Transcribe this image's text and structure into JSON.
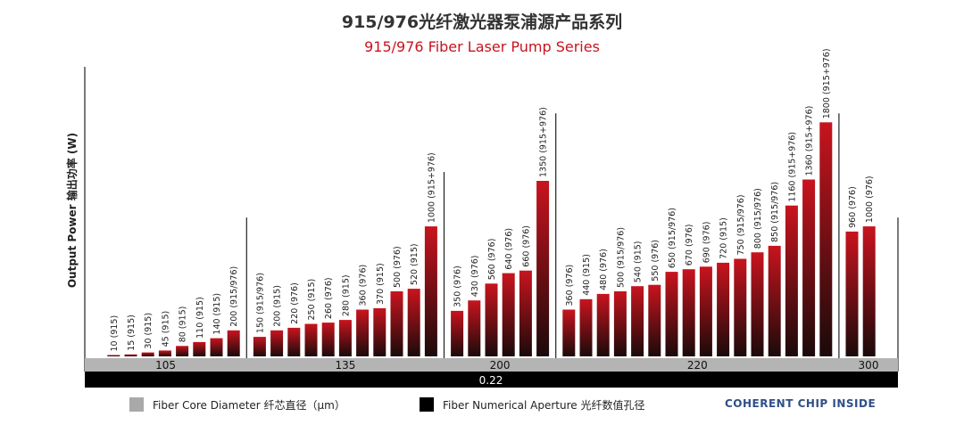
{
  "title_cn": "915/976光纤激光器泵浦源产品系列",
  "title_en": "915/976 Fiber Laser Pump Series",
  "legend": {
    "core": {
      "label": "Fiber Core Diameter 纤芯直径（μm）",
      "color": "#a9a9a9"
    },
    "na": {
      "label": "Fiber Numerical Aperture 光纤数值孔径",
      "color": "#000000"
    }
  },
  "brand": "COHERENT CHIP INSIDE",
  "colors": {
    "bar_top": "#c8141e",
    "bar_bottom": "#1a0a0a",
    "title_red": "#c8141e"
  },
  "chart_data": {
    "type": "bar",
    "ylabel": "Output Power 输出功率 (W)",
    "ylim": [
      0,
      1850
    ],
    "groups": [
      {
        "core_diameter": "105",
        "bars": [
          {
            "value": 10,
            "label": "10 (915)"
          },
          {
            "value": 15,
            "label": "15 (915)"
          },
          {
            "value": 30,
            "label": "30 (915)"
          },
          {
            "value": 45,
            "label": "45 (915)"
          },
          {
            "value": 80,
            "label": "80 (915)"
          },
          {
            "value": 110,
            "label": "110 (915)"
          },
          {
            "value": 140,
            "label": "140 (915)"
          },
          {
            "value": 200,
            "label": "200 (915/976)"
          }
        ]
      },
      {
        "core_diameter": "135",
        "bars": [
          {
            "value": 150,
            "label": "150 (915/976)"
          },
          {
            "value": 200,
            "label": "200 (915)"
          },
          {
            "value": 220,
            "label": "220 (976)"
          },
          {
            "value": 250,
            "label": "250 (915)"
          },
          {
            "value": 260,
            "label": "260 (976)"
          },
          {
            "value": 280,
            "label": "280 (915)"
          },
          {
            "value": 360,
            "label": "360 (976)"
          },
          {
            "value": 370,
            "label": "370 (915)"
          },
          {
            "value": 500,
            "label": "500 (976)"
          },
          {
            "value": 520,
            "label": "520 (915)"
          },
          {
            "value": 1000,
            "label": "1000 (915+976)"
          }
        ]
      },
      {
        "core_diameter": "200",
        "bars": [
          {
            "value": 350,
            "label": "350 (976)"
          },
          {
            "value": 430,
            "label": "430 (976)"
          },
          {
            "value": 560,
            "label": "560 (976)"
          },
          {
            "value": 640,
            "label": "640 (976)"
          },
          {
            "value": 660,
            "label": "660 (976)"
          },
          {
            "value": 1350,
            "label": "1350 (915+976)"
          }
        ]
      },
      {
        "core_diameter": "220",
        "bars": [
          {
            "value": 360,
            "label": "360 (976)"
          },
          {
            "value": 440,
            "label": "440 (915)"
          },
          {
            "value": 480,
            "label": "480 (976)"
          },
          {
            "value": 500,
            "label": "500 (915/976)"
          },
          {
            "value": 540,
            "label": "540 (915)"
          },
          {
            "value": 550,
            "label": "550 (976)"
          },
          {
            "value": 650,
            "label": "650 (915/976)"
          },
          {
            "value": 670,
            "label": "670 (976)"
          },
          {
            "value": 690,
            "label": "690 (976)"
          },
          {
            "value": 720,
            "label": "720 (915)"
          },
          {
            "value": 750,
            "label": "750 (915/976)"
          },
          {
            "value": 800,
            "label": "800 (915/976)"
          },
          {
            "value": 850,
            "label": "850 (915/976)"
          },
          {
            "value": 1160,
            "label": "1160 (915+976)"
          },
          {
            "value": 1360,
            "label": "1360 (915+976)"
          },
          {
            "value": 1800,
            "label": "1800 (915+976)"
          }
        ]
      },
      {
        "core_diameter": "300",
        "bars": [
          {
            "value": 960,
            "label": "960 (976)"
          },
          {
            "value": 1000,
            "label": "1000 (976)"
          }
        ]
      }
    ],
    "numerical_aperture": "0.22"
  }
}
